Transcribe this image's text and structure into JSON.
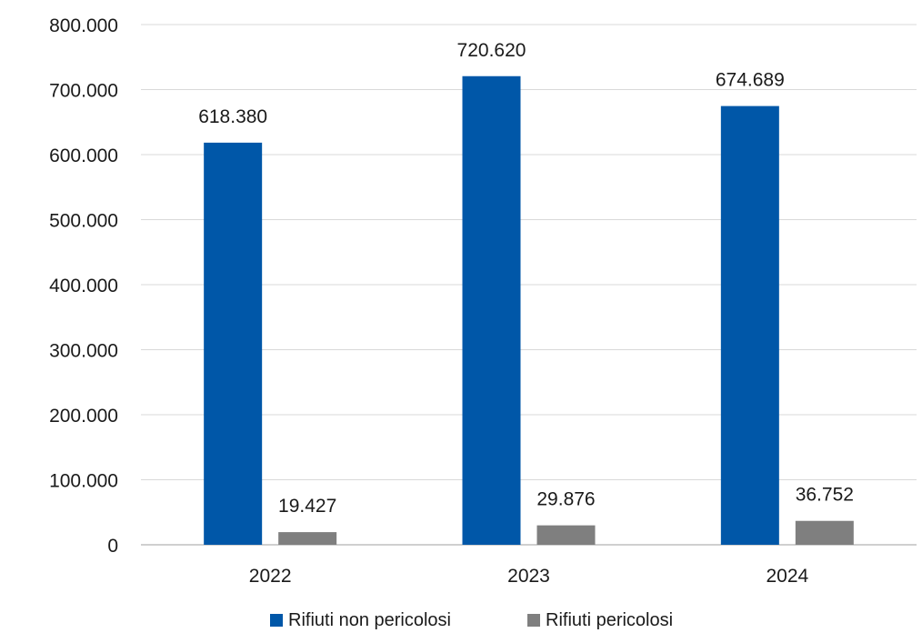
{
  "chart_data": {
    "type": "bar",
    "title": "",
    "xlabel": "",
    "ylabel": "",
    "categories": [
      "2022",
      "2023",
      "2024"
    ],
    "series": [
      {
        "name": "Rifiuti non pericolosi",
        "color": "#0057A8",
        "values": [
          618380,
          720620,
          674689
        ],
        "labels": [
          "618.380",
          "720.620",
          "674.689"
        ]
      },
      {
        "name": "Rifiuti pericolosi",
        "color": "#7F7F7F",
        "values": [
          19427,
          29876,
          36752
        ],
        "labels": [
          "19.427",
          "29.876",
          "36.752"
        ]
      }
    ],
    "ylim": [
      0,
      800000
    ],
    "yticks": [
      0,
      100000,
      200000,
      300000,
      400000,
      500000,
      600000,
      700000,
      800000
    ],
    "ytick_labels": [
      "0",
      "100.000",
      "200.000",
      "300.000",
      "400.000",
      "500.000",
      "600.000",
      "700.000",
      "800.000"
    ],
    "grid": true,
    "gridline_color": "#D9D9D9",
    "legend_position": "bottom"
  }
}
